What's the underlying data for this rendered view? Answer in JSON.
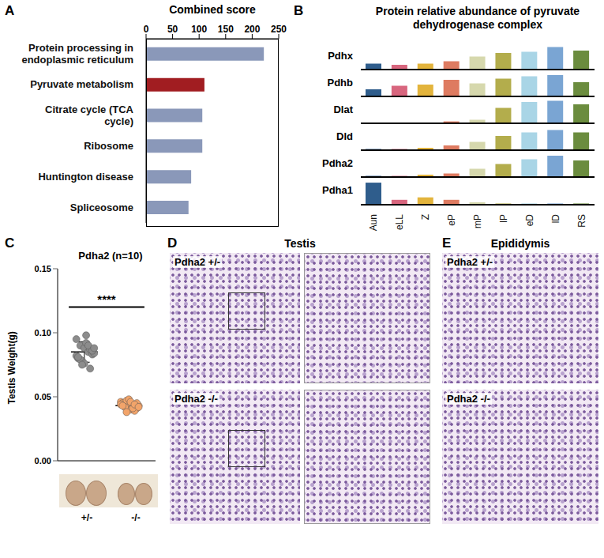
{
  "chart_data": [
    {
      "panel": "A",
      "type": "bar",
      "orientation": "horizontal",
      "title": "Combined score",
      "categories": [
        "Protein processing in endoplasmic reticulum",
        "Pyruvate metabolism",
        "Citrate cycle (TCA cycle)",
        "Ribosome",
        "Huntington disease",
        "Spliceosome"
      ],
      "values": [
        222,
        110,
        106,
        106,
        85,
        80
      ],
      "colors": [
        "#8a98b9",
        "#a11d21",
        "#8a98b9",
        "#8a98b9",
        "#8a98b9",
        "#8a98b9"
      ],
      "xlim": [
        0,
        250
      ],
      "xticks": [
        0,
        50,
        100,
        150,
        200,
        250
      ]
    },
    {
      "panel": "B",
      "type": "bar",
      "title": "Protein relative abundance of pyruvate dehydrogenase complex",
      "categories": [
        "Aun",
        "eLL",
        "Z",
        "eP",
        "mP",
        "lP",
        "eD",
        "lD",
        "RS"
      ],
      "colors": [
        "#2f5d8c",
        "#d8667e",
        "#e3b43c",
        "#de7b61",
        "#d6d8ad",
        "#b3ad4c",
        "#a9d5e6",
        "#7aa5d3",
        "#6b8c3e"
      ],
      "series": [
        {
          "name": "Pdhx",
          "values": [
            0.25,
            0.2,
            0.25,
            0.35,
            0.55,
            0.7,
            0.75,
            0.95,
            0.8
          ]
        },
        {
          "name": "Pdhb",
          "values": [
            0.3,
            0.45,
            0.5,
            0.7,
            0.55,
            0.75,
            0.85,
            0.9,
            0.6
          ]
        },
        {
          "name": "Dlat",
          "values": [
            0.02,
            0.02,
            0.02,
            0.08,
            0.15,
            0.65,
            0.9,
            0.95,
            0.8
          ]
        },
        {
          "name": "Dld",
          "values": [
            0.05,
            0.05,
            0.1,
            0.2,
            0.35,
            0.6,
            0.75,
            0.85,
            0.75
          ]
        },
        {
          "name": "Pdha2",
          "values": [
            0.05,
            0.05,
            0.1,
            0.15,
            0.35,
            0.55,
            0.75,
            0.9,
            0.7
          ]
        },
        {
          "name": "Pdha1",
          "values": [
            0.9,
            0.2,
            0.3,
            0.2,
            0.1,
            0.05,
            0.05,
            0.05,
            0.05
          ]
        }
      ],
      "ylim": [
        0,
        1
      ],
      "tick_labels": "x"
    },
    {
      "panel": "C",
      "type": "scatter",
      "title": "Pdha2 (n=10)",
      "y_label": "Testis Weight(g)",
      "categories": [
        "+/-",
        "-/-"
      ],
      "values": [
        [
          0.095,
          0.09,
          0.088,
          0.085,
          0.083,
          0.08,
          0.078,
          0.092,
          0.087,
          0.084,
          0.082,
          0.079,
          0.076,
          0.09,
          0.086,
          0.081,
          0.075,
          0.098,
          0.072,
          0.088
        ],
        [
          0.046,
          0.044,
          0.043,
          0.042,
          0.041,
          0.045,
          0.047,
          0.04,
          0.039,
          0.043,
          0.044,
          0.042,
          0.048,
          0.041,
          0.045,
          0.043,
          0.038,
          0.046,
          0.044,
          0.042
        ]
      ],
      "means": [
        0.085,
        0.043
      ],
      "sd": [
        0.008,
        0.003
      ],
      "colors": [
        "#8c8c8c",
        "#f2a46a"
      ],
      "annotation": "****",
      "ylim": [
        0,
        0.15
      ],
      "yticks": [
        {
          "value": 0,
          "label": "0.00"
        },
        {
          "value": 0.05,
          "label": "0.05"
        },
        {
          "value": 0.1,
          "label": "0.10"
        },
        {
          "value": 0.15,
          "label": "0.15"
        }
      ]
    }
  ],
  "images": [
    {
      "panel": "D",
      "title": "Testis",
      "labels": [
        "Pdha2 +/-",
        "Pdha2 -/-"
      ]
    },
    {
      "panel": "E",
      "title": "Epididymis",
      "labels": [
        "Pdha2 +/-",
        "Pdha2 -/-"
      ]
    }
  ]
}
